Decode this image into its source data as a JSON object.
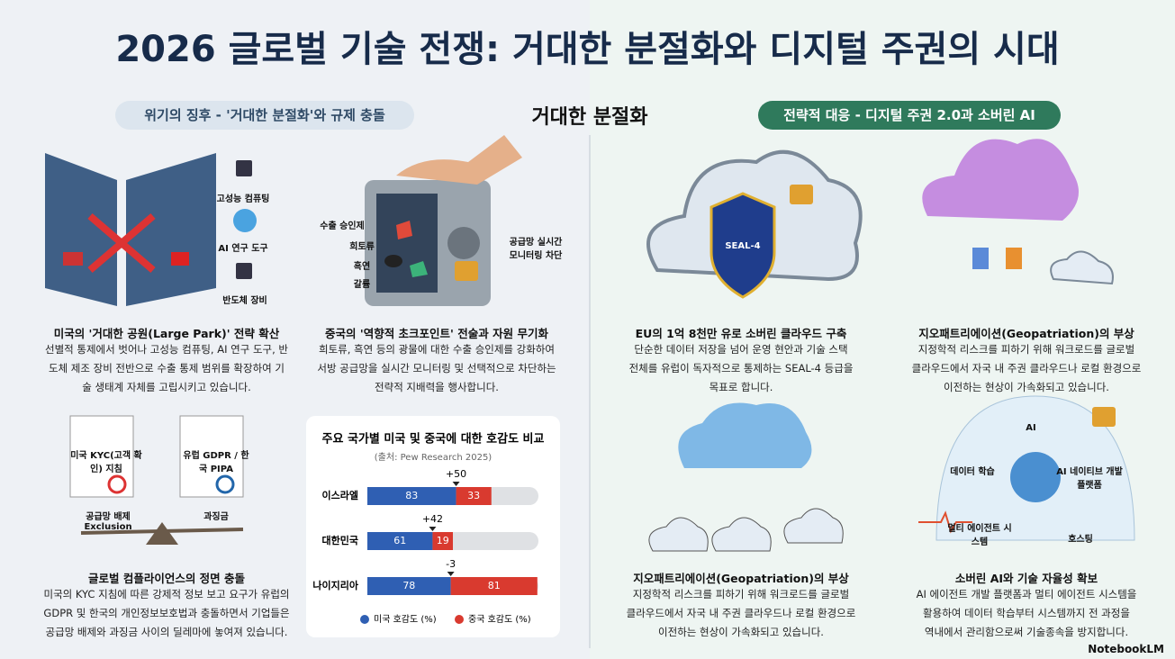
{
  "header": {
    "title": "2026 글로벌 기술 전쟁: 거대한 분절화와 디지털 주권의 시대",
    "center_label": "거대한 분절화",
    "left_pill": "위기의 징후 - '거대한 분절화'와 규제 충돌",
    "right_pill": "전략적 대응 - 디지털 주권 2.0과 소버린 AI"
  },
  "panels": [
    {
      "heading": "미국의 '거대한 공원(Large Park)' 전략 확산",
      "body": [
        "선별적 통제에서 벗어나 고성능 컴퓨팅, AI 연구 도구, 반",
        "도체 제조 장비 전반으로 수출 통제 범위를 확장하여 기",
        "술 생태계 자체를 고립시키고 있습니다."
      ],
      "labels": [
        "고성능 컴퓨팅",
        "AI 연구 도구",
        "반도체 장비"
      ]
    },
    {
      "heading": "중국의 '역향적 초크포인트' 전술과 자원 무기화",
      "body": [
        "희토류, 흑연 등의 광물에 대한 수출 승인제를 강화하여",
        "서방 공급망을 실시간 모니터링 및 선택적으로 차단하는",
        "전략적 지배력을 행사합니다."
      ],
      "labels": [
        "수출 승인제",
        "희토류",
        "흑연",
        "갈륨",
        "공급망 실시간 모니터링 차단"
      ]
    },
    {
      "heading": "글로벌 컴플라이언스의 정면 충돌",
      "body": [
        "미국의 KYC 지침에 따른 강제적 정보 보고 요구가 유럽의",
        "GDPR 및 한국의 개인정보보호법과 충돌하면서 기업들은",
        "공급망 배제와 과징금 사이의 딜레마에 놓여져 있습니다."
      ],
      "labels": [
        "미국 KYC(고객 확인) 지침",
        "유럽 GDPR / 한국 PIPA",
        "공급망 배제 Exclusion",
        "과징금"
      ]
    },
    {
      "heading": "EU의 1억 8천만 유로 소버린 클라우드 구축",
      "body": [
        "단순한 데이터 저장을 넘어 운영 현안과 기술 스택",
        "전체를 유럽이 독자적으로 통제하는 SEAL-4 등급을",
        "목표로 합니다."
      ],
      "labels": [
        "SEAL-4"
      ]
    },
    {
      "heading": "지오패트리에이션(Geopatriation)의 부상",
      "body": [
        "지정학적 리스크를 피하기 위해 워크로드를 글로벌",
        "클라우드에서 자국 내 주권 클라우드나 로컬 환경으로",
        "이전하는 현상이 가속화되고 있습니다."
      ],
      "labels": []
    },
    {
      "heading": "지오패트리에이션(Geopatriation)의 부상",
      "body": [
        "지정학적 리스크를 피하기 위해 워크로드를 글로벌",
        "클라우드에서 자국 내 주권 클라우드나 로컬 환경으로",
        "이전하는 현상이 가속화되고 있습니다."
      ],
      "labels": []
    },
    {
      "heading": "소버린 AI와 기술 자율성 확보",
      "body": [
        "AI 에이전트 개발 플랫폼과 멀티 에이전트 시스템을",
        "활용하여 데이터 학습부터 시스템까지 전 과정을",
        "역내에서 관리함으로써 기술종속을 방지합니다."
      ],
      "labels": [
        "AI",
        "데이터 학습",
        "AI 네이티브 개발 플랫폼",
        "멀티 에이전트 시스템",
        "호스팅"
      ]
    }
  ],
  "footer": {
    "brand": "NotebookLM"
  },
  "chart_data": {
    "type": "bar",
    "orientation": "horizontal",
    "stacked": true,
    "title": "주요 국가별 미국 및 중국에 대한 호감도 비교",
    "subtitle": "(출처: Pew Research 2025)",
    "categories": [
      "이스라엘",
      "대한민국",
      "나이지리아"
    ],
    "series": [
      {
        "name": "미국 호감도 (%)",
        "color": "#2f5fb3",
        "values": [
          83,
          61,
          78
        ]
      },
      {
        "name": "중국 호감도 (%)",
        "color": "#d93a2f",
        "values": [
          33,
          19,
          81
        ]
      }
    ],
    "gap_labels": [
      "+50",
      "+42",
      "-3"
    ],
    "xlim": [
      0,
      160
    ]
  }
}
